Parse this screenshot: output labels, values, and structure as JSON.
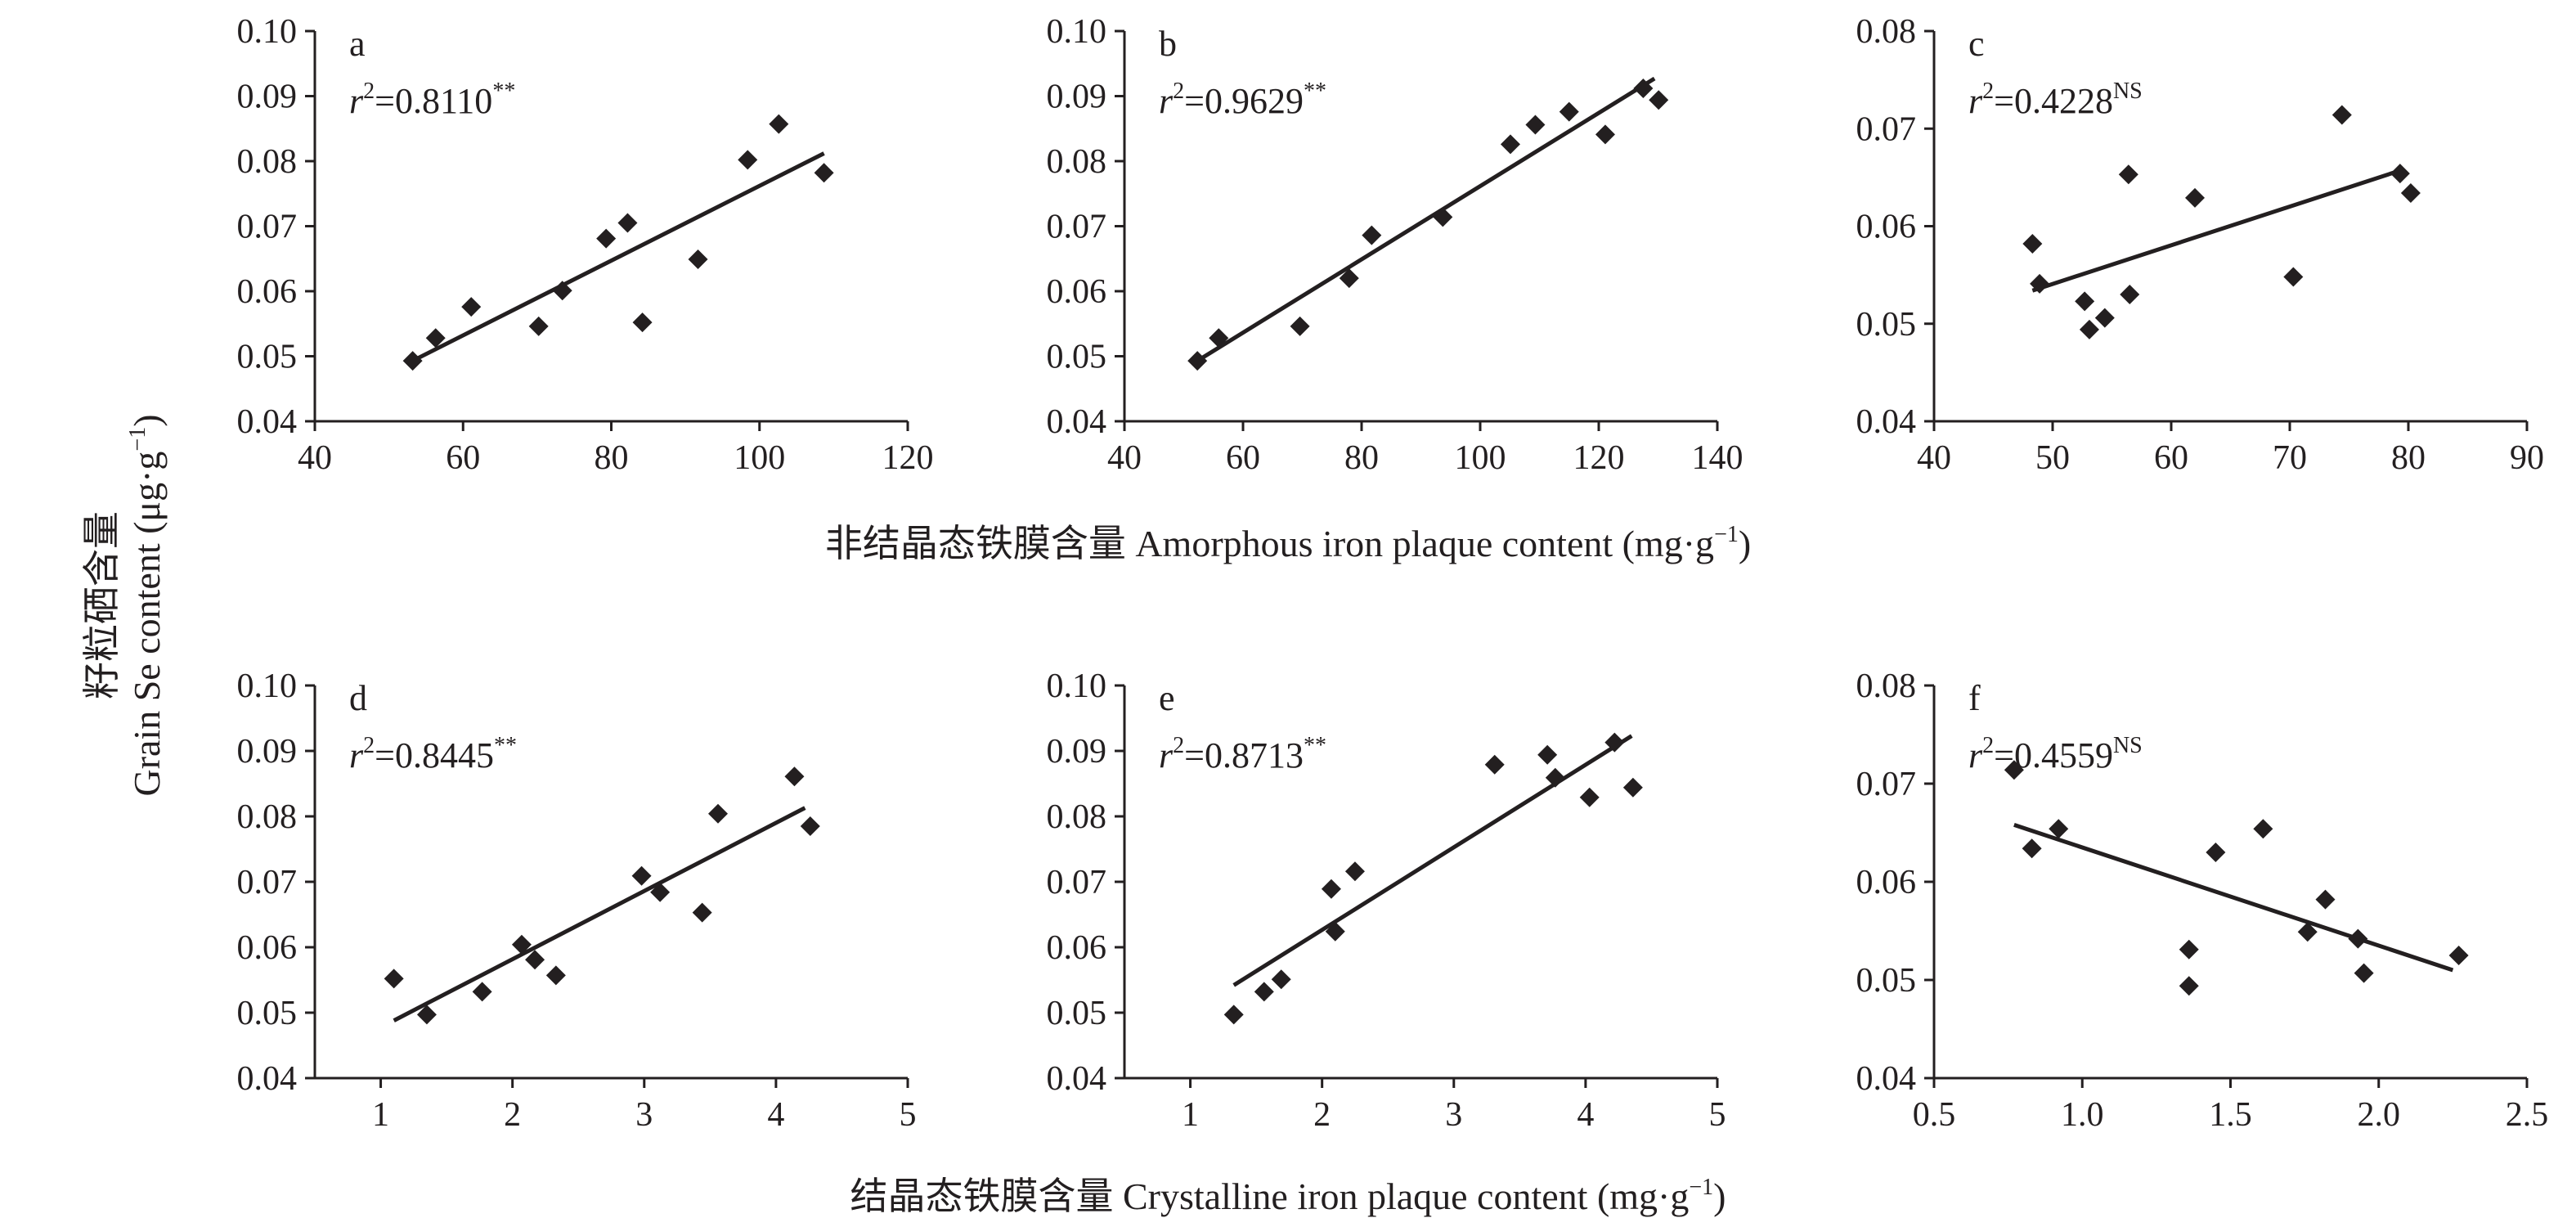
{
  "labels": {
    "y_title_cn": "籽粒硒含量",
    "y_title_en": "Grain Se content (μg·g",
    "y_title_en_sup": "−1",
    "y_title_en_end": ")",
    "x_title_top": "非结晶态铁膜含量 Amorphous iron plaque content (mg·g",
    "x_title_top_sup": "−1",
    "x_title_top_end": ")",
    "x_title_bottom": "结晶态铁膜含量 Crystalline iron plaque content (mg·g",
    "x_title_bottom_sup": "−1",
    "x_title_bottom_end": ")"
  },
  "chart_data": [
    {
      "panel": "a",
      "type": "scatter",
      "r2_text": "=0.8110",
      "r2_sup": "**",
      "xlim": [
        40,
        120
      ],
      "xticks": [
        "40",
        "60",
        "80",
        "100",
        "120"
      ],
      "ylim": [
        0.04,
        0.1
      ],
      "yticks": [
        "0.04",
        "0.05",
        "0.06",
        "0.07",
        "0.08",
        "0.09",
        "0.10"
      ],
      "points": [
        [
          53.2,
          0.0493
        ],
        [
          56.3,
          0.0528
        ],
        [
          61.1,
          0.0576
        ],
        [
          70.2,
          0.0546
        ],
        [
          73.4,
          0.0601
        ],
        [
          79.3,
          0.0681
        ],
        [
          82.2,
          0.0705
        ],
        [
          84.2,
          0.0552
        ],
        [
          91.7,
          0.0649
        ],
        [
          98.4,
          0.0802
        ],
        [
          102.6,
          0.0857
        ],
        [
          108.7,
          0.0782
        ]
      ],
      "fit": [
        [
          53.2,
          0.0493
        ],
        [
          108.7,
          0.0812
        ]
      ]
    },
    {
      "panel": "b",
      "type": "scatter",
      "r2_text": "=0.9629",
      "r2_sup": "**",
      "xlim": [
        40,
        140
      ],
      "xticks": [
        "40",
        "60",
        "80",
        "100",
        "120",
        "140"
      ],
      "ylim": [
        0.04,
        0.1
      ],
      "yticks": [
        "0.04",
        "0.05",
        "0.06",
        "0.07",
        "0.08",
        "0.09",
        "0.10"
      ],
      "points": [
        [
          52.3,
          0.0493
        ],
        [
          55.9,
          0.0528
        ],
        [
          69.6,
          0.0546
        ],
        [
          77.9,
          0.062
        ],
        [
          81.7,
          0.0686
        ],
        [
          93.7,
          0.0714
        ],
        [
          105.1,
          0.0826
        ],
        [
          109.3,
          0.0856
        ],
        [
          115.0,
          0.0876
        ],
        [
          121.1,
          0.0841
        ],
        [
          127.5,
          0.0912
        ],
        [
          130.1,
          0.0894
        ]
      ],
      "fit": [
        [
          52.3,
          0.0493
        ],
        [
          129.4,
          0.0927
        ]
      ]
    },
    {
      "panel": "c",
      "type": "scatter",
      "r2_text": "=0.4228",
      "r2_sup": "NS",
      "xlim": [
        40,
        90
      ],
      "xticks": [
        "40",
        "50",
        "60",
        "70",
        "80",
        "90"
      ],
      "ylim": [
        0.04,
        0.08
      ],
      "yticks": [
        "0.04",
        "0.05",
        "0.06",
        "0.07",
        "0.08"
      ],
      "points": [
        [
          48.3,
          0.0582
        ],
        [
          48.9,
          0.0541
        ],
        [
          52.7,
          0.0523
        ],
        [
          53.1,
          0.0494
        ],
        [
          54.4,
          0.0506
        ],
        [
          56.4,
          0.0653
        ],
        [
          56.5,
          0.053
        ],
        [
          62.0,
          0.0629
        ],
        [
          70.3,
          0.0548
        ],
        [
          74.4,
          0.0714
        ],
        [
          79.3,
          0.0654
        ],
        [
          80.2,
          0.0634
        ]
      ],
      "fit": [
        [
          48.3,
          0.0534
        ],
        [
          79.3,
          0.0657
        ]
      ]
    },
    {
      "panel": "d",
      "type": "scatter",
      "r2_text": "=0.8445",
      "r2_sup": "**",
      "xlim": [
        0.5,
        5
      ],
      "xticks": [
        "1",
        "2",
        "3",
        "4",
        "5"
      ],
      "ylim": [
        0.04,
        0.1
      ],
      "yticks": [
        "0.04",
        "0.05",
        "0.06",
        "0.07",
        "0.08",
        "0.09",
        "0.10"
      ],
      "points": [
        [
          1.1,
          0.0552
        ],
        [
          1.35,
          0.0497
        ],
        [
          1.77,
          0.0532
        ],
        [
          2.07,
          0.0604
        ],
        [
          2.17,
          0.0581
        ],
        [
          2.33,
          0.0557
        ],
        [
          2.98,
          0.0709
        ],
        [
          3.12,
          0.0684
        ],
        [
          3.44,
          0.0653
        ],
        [
          3.56,
          0.0804
        ],
        [
          4.14,
          0.0861
        ],
        [
          4.26,
          0.0785
        ]
      ],
      "fit": [
        [
          1.1,
          0.0488
        ],
        [
          4.22,
          0.0813
        ]
      ]
    },
    {
      "panel": "e",
      "type": "scatter",
      "r2_text": "=0.8713",
      "r2_sup": "**",
      "xlim": [
        0.5,
        5
      ],
      "xticks": [
        "1",
        "2",
        "3",
        "4",
        "5"
      ],
      "ylim": [
        0.04,
        0.1
      ],
      "yticks": [
        "0.04",
        "0.05",
        "0.06",
        "0.07",
        "0.08",
        "0.09",
        "0.10"
      ],
      "points": [
        [
          1.33,
          0.0497
        ],
        [
          1.56,
          0.0532
        ],
        [
          1.69,
          0.0551
        ],
        [
          2.07,
          0.0689
        ],
        [
          2.1,
          0.0624
        ],
        [
          2.25,
          0.0716
        ],
        [
          3.31,
          0.0879
        ],
        [
          3.71,
          0.0894
        ],
        [
          3.77,
          0.0859
        ],
        [
          4.03,
          0.0829
        ],
        [
          4.22,
          0.0913
        ],
        [
          4.36,
          0.0844
        ]
      ],
      "fit": [
        [
          1.33,
          0.0542
        ],
        [
          4.35,
          0.0923
        ]
      ]
    },
    {
      "panel": "f",
      "type": "scatter",
      "r2_text": "=0.4559",
      "r2_sup": "NS",
      "xlim": [
        0.5,
        2.5
      ],
      "xticks": [
        "0.5",
        "1.0",
        "1.5",
        "2.0",
        "2.5"
      ],
      "ylim": [
        0.04,
        0.08
      ],
      "yticks": [
        "0.04",
        "0.05",
        "0.06",
        "0.07",
        "0.08"
      ],
      "points": [
        [
          0.77,
          0.0714
        ],
        [
          0.83,
          0.0634
        ],
        [
          0.92,
          0.0654
        ],
        [
          1.36,
          0.0531
        ],
        [
          1.36,
          0.0494
        ],
        [
          1.45,
          0.063
        ],
        [
          1.61,
          0.0654
        ],
        [
          1.76,
          0.0549
        ],
        [
          1.82,
          0.0582
        ],
        [
          1.93,
          0.0542
        ],
        [
          1.95,
          0.0507
        ],
        [
          2.27,
          0.0525
        ]
      ],
      "fit": [
        [
          0.77,
          0.0658
        ],
        [
          2.25,
          0.051
        ]
      ]
    }
  ]
}
